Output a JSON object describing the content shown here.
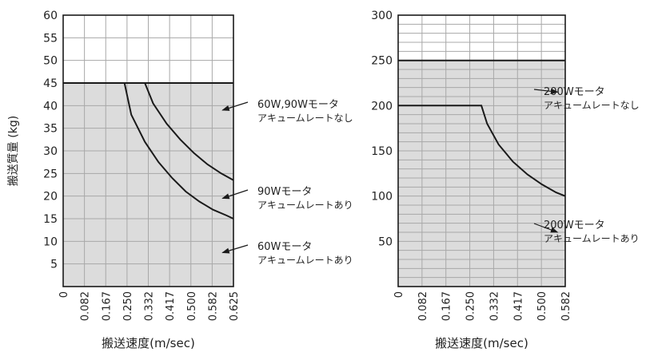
{
  "colors": {
    "fill": "#dcdcdc",
    "grid": "#a8a8a8",
    "line": "#1a1a1a",
    "text": "#222222"
  },
  "chart_data": [
    {
      "type": "area",
      "ylabel": "搬送質量 (kg)",
      "xlabel": "搬送速度(m/sec)",
      "x_ticks": [
        "0",
        "0.082",
        "0.167",
        "0.250",
        "0.332",
        "0.417",
        "0.500",
        "0.582",
        "0.625"
      ],
      "xlim": [
        0,
        0.625
      ],
      "ylim": [
        0,
        60
      ],
      "y_ticks": [
        5,
        10,
        15,
        20,
        25,
        30,
        35,
        40,
        45,
        50,
        55,
        60
      ],
      "y_tick_labels": [
        "5",
        "10",
        "15",
        "20",
        "25",
        "30",
        "35",
        "40",
        "45",
        "50",
        "55",
        "60"
      ],
      "grid": true,
      "series": [
        {
          "name": "60W,90Wモータ アキュームレートなし",
          "x": [
            0,
            0.625
          ],
          "y": [
            45,
            45
          ]
        },
        {
          "name": "90Wモータ アキュームレートあり",
          "x": [
            0,
            0.3,
            0.33,
            0.38,
            0.43,
            0.48,
            0.53,
            0.58,
            0.625
          ],
          "y": [
            45,
            45,
            40.5,
            36,
            32.5,
            29.5,
            27,
            25,
            23.5
          ]
        },
        {
          "name": "60Wモータ アキュームレートあり",
          "x": [
            0,
            0.225,
            0.25,
            0.3,
            0.35,
            0.4,
            0.45,
            0.5,
            0.55,
            0.6,
            0.625
          ],
          "y": [
            45,
            45,
            38,
            32,
            27.5,
            24,
            21,
            18.8,
            17,
            15.7,
            15
          ]
        }
      ],
      "annotations": [
        {
          "line1": "60W,90Wモータ",
          "line2": "アキュームレートなし",
          "target": [
            0.585,
            39
          ]
        },
        {
          "line1": "90Wモータ",
          "line2": "アキュームレートあり",
          "target": [
            0.585,
            19.5
          ]
        },
        {
          "line1": "60Wモータ",
          "line2": "アキュームレートあり",
          "target": [
            0.585,
            7.5
          ]
        }
      ]
    },
    {
      "type": "area",
      "xlabel": "搬送速度(m/sec)",
      "x_ticks": [
        "0",
        "0.082",
        "0.167",
        "0.250",
        "0.332",
        "0.417",
        "0.500",
        "0.582"
      ],
      "xlim": [
        0,
        0.582
      ],
      "ylim": [
        0,
        300
      ],
      "y_ticks": [
        50,
        100,
        150,
        200,
        250,
        300
      ],
      "y_tick_labels": [
        "50",
        "100",
        "150",
        "200",
        "250",
        "300"
      ],
      "grid": true,
      "series": [
        {
          "name": "200Wモータ アキュームレートなし",
          "x": [
            0,
            0.582
          ],
          "y": [
            250,
            250
          ]
        },
        {
          "name": "200Wモータ アキュームレートあり",
          "x": [
            0,
            0.29,
            0.31,
            0.35,
            0.4,
            0.45,
            0.5,
            0.55,
            0.582
          ],
          "y": [
            200,
            200,
            180,
            157,
            138,
            124,
            113,
            104,
            100
          ]
        }
      ],
      "annotations": [
        {
          "line1": "200Wモータ",
          "line2": "アキュームレートなし",
          "target": [
            0.555,
            215
          ]
        },
        {
          "line1": "200Wモータ",
          "line2": "アキュームレートあり",
          "target": [
            0.555,
            60
          ]
        }
      ]
    }
  ]
}
